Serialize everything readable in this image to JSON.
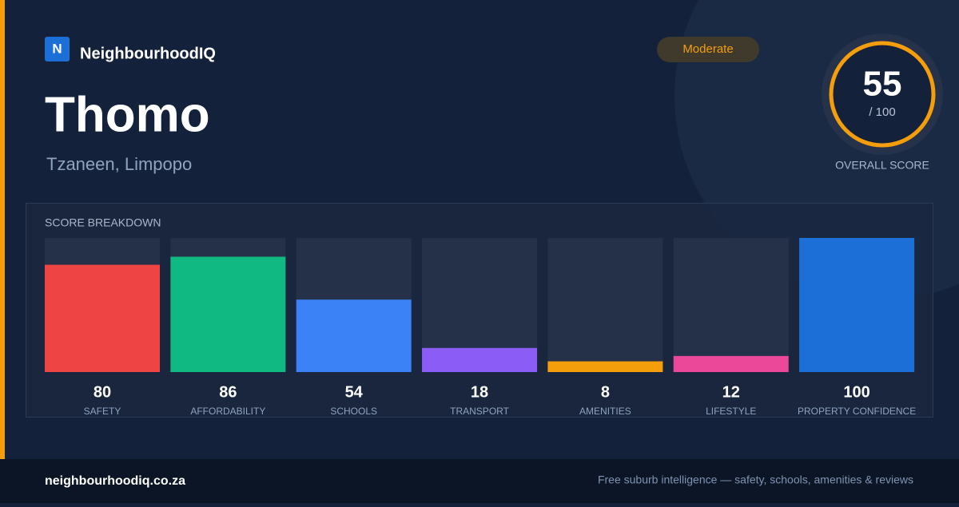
{
  "brand": {
    "logo": "N",
    "name": "NeighbourhoodIQ"
  },
  "badge": "Moderate",
  "suburb": "Thomo",
  "location": "Tzaneen, Limpopo",
  "overall": {
    "score": "55",
    "out_of": "/ 100",
    "label": "OVERALL SCORE"
  },
  "chart_data": {
    "type": "bar",
    "title": "SCORE BREAKDOWN",
    "categories": [
      "SAFETY",
      "AFFORDABILITY",
      "SCHOOLS",
      "TRANSPORT",
      "AMENITIES",
      "LIFESTYLE",
      "PROPERTY CONFIDENCE"
    ],
    "values": [
      80,
      86,
      54,
      18,
      8,
      12,
      100
    ],
    "colors": [
      "#ef4444",
      "#10b981",
      "#3b82f6",
      "#8b5cf6",
      "#f59e0b",
      "#ec4899",
      "#1d6fd8"
    ],
    "ylim": [
      0,
      100
    ]
  },
  "footer": {
    "site": "neighbourhoodiq.co.za",
    "tagline": "Free suburb intelligence — safety, schools, amenities & reviews"
  }
}
